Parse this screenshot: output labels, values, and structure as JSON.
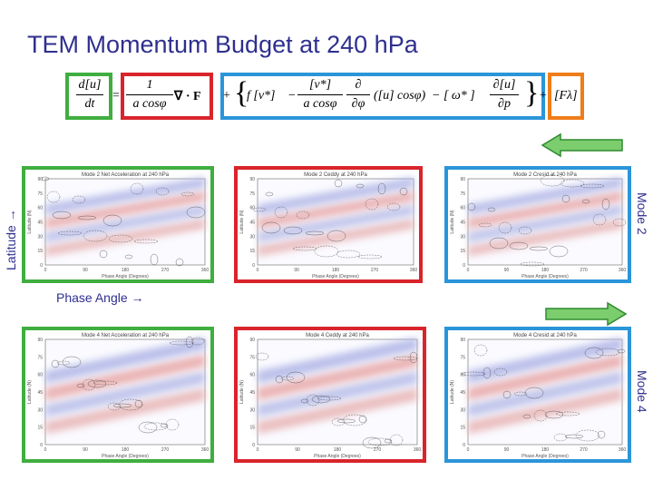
{
  "title": "TEM Momentum Budget at 240 hPa",
  "equation": {
    "term1": {
      "num": "d[u]",
      "den": "dt",
      "box_color": "#3fae3f"
    },
    "term2": {
      "sign": "=",
      "num": "1",
      "den": "a cosφ",
      "op": "∇ · F",
      "box_color": "#d9242b"
    },
    "term3": {
      "lead": "+",
      "f_v": "f [v*]",
      "minus1": "−",
      "num2": "[v*]",
      "den2": "a cosφ",
      "pnum": "∂",
      "pden": "∂φ",
      "paren": "([u] cosφ)",
      "minus2": "− [ ω* ]",
      "num3": "∂[u]",
      "den3": "∂p",
      "box_color": "#2b95d9"
    },
    "term4": {
      "lead": "+",
      "text": "[Fλ]",
      "box_color": "#ef7d1a"
    }
  },
  "labels": {
    "latitude": "Latitude →",
    "phase_angle": "Phase Angle →",
    "mode2": "Mode 2",
    "mode4": "Mode 4"
  },
  "colors": {
    "arrow_fill": "#7ccd6e",
    "arrow_stroke": "#2e8b2e",
    "title": "#2f2f8f"
  },
  "panels": {
    "row1": [
      {
        "title": "Mode 2 Net Acceleration at 240 hPa",
        "box_color": "#3fae3f"
      },
      {
        "title": "Mode 2 Ceddy at 240 hPa",
        "box_color": "#d9242b"
      },
      {
        "title": "Mode 2 Cresid at 240 hPa",
        "box_color": "#2b95d9"
      }
    ],
    "row2": [
      {
        "title": "Mode 4 Net Acceleration at 240 hPa",
        "box_color": "#3fae3f"
      },
      {
        "title": "Mode 4 Ceddy at 240 hPa",
        "box_color": "#d9242b"
      },
      {
        "title": "Mode 4 Cresid at 240 hPa",
        "box_color": "#2b95d9"
      }
    ],
    "xticks": [
      "0",
      "90",
      "180",
      "270",
      "360"
    ],
    "yticks": [
      "90",
      "75",
      "60",
      "45",
      "30",
      "15",
      "0"
    ],
    "xlabel": "Phase Angle (Degrees)",
    "ylabel": "Latitude (N)"
  }
}
